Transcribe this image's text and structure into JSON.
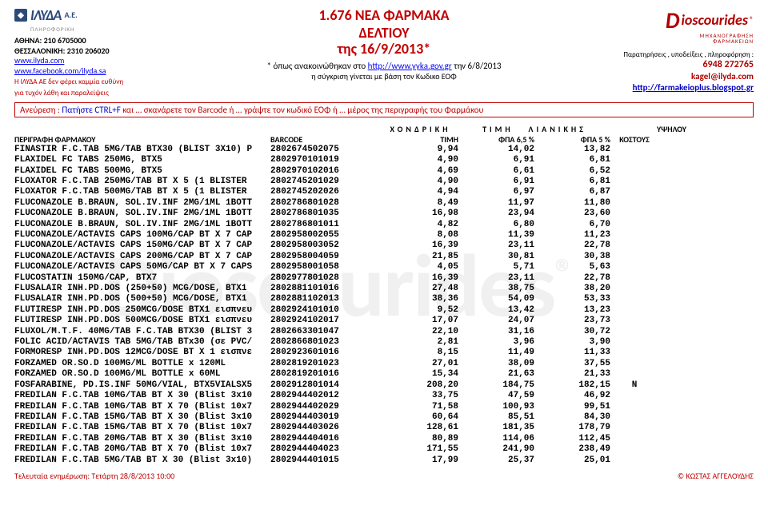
{
  "watermark": "Dioscourides",
  "header": {
    "left": {
      "logo_name": "ΙΛΥΔΑ",
      "logo_suffix": "Α.Ε.",
      "logo_tag": "ΠΛΗΡΟΦΟΡΙΚΗ",
      "athens": "ΑΘΗΝΑ: 210 6705000",
      "thess": "ΘΕΣΣΑΛΟΝΙΚΗ: 2310 206020",
      "site": "www.ilyda.com",
      "fb": "www.facebook.com/ilyda.sa",
      "disclaimer1": "Η ΙΛΥΔΑ ΑΕ δεν φέρει καμμία ευθύνη",
      "disclaimer2": "για τυχόν λάθη και παραλείψεις"
    },
    "center": {
      "line1": "1.676 ΝΕΑ ΦΑΡΜΑΚΑ",
      "line2": "ΔΕΛΤΙΟΥ",
      "line3a": "της ",
      "line3b": "16/9/2013*",
      "note1_pre": "* όπως ανακοινώθηκαν στο ",
      "note1_link": "http://www.yyka.gov.gr",
      "note1_post": "  την  6/8/2013",
      "note2": "η σύγκριση γίνεται με βάση τον Κωδικο ΕΟΦ"
    },
    "right": {
      "brand": "ioscourides",
      "sub1": "ΜΗΧΑΝΟΓΡΑΦΗΣΗ",
      "sub2": "ΦΑΡΜΑΚΕΙΩΝ",
      "note": "Παρατηρήσεις , υποδείξεις , πληροφόρηση :",
      "phone": "6948 272765",
      "mail": "kagel@ilyda.com",
      "site": "http://farmakeioplus.blogspot.gr"
    }
  },
  "searchbox": {
    "label": "Ανεύρεση : ",
    "tip1": "Πατήστε CTRL+F",
    "mid1": "  και … σκανάρετε τον Barcode   ή … γράψτε τον κωδικό ΕΟΦ   ή … μέρος της περιγραφής του Φαρμάκου"
  },
  "columns": {
    "group_x": "ΧΟΝΔΡΙΚΗ",
    "group_l_a": "ΤΙΜΗ",
    "group_l_b": "ΛΙΑΝΙΚΗΣ",
    "group_y": "ΥΨΗΛΟΥ",
    "desc": "ΠΕΡΙΓΡΑΦΗ  ΦΑΡΜΑΚΟΥ",
    "barcode": "BARCODE",
    "p1": "ΤΙΜΗ",
    "p2": "ΦΠΑ 6,5 %",
    "p3": "ΦΠΑ 5 %",
    "flag": "ΚΟΣΤΟΥΣ"
  },
  "rows": [
    {
      "d": "FINASTIR F.C.TAB 5MG/TAB BTX30 (BLIST 3X10) P",
      "b": "2802674502075",
      "p1": "9,94",
      "p2": "14,02",
      "p3": "13,82",
      "f": ""
    },
    {
      "d": "FLAXIDEL FC TABS 250MG, BTX5",
      "b": "2802970101019",
      "p1": "4,90",
      "p2": "6,91",
      "p3": "6,81",
      "f": ""
    },
    {
      "d": "FLAXIDEL FC TABS 500MG, BTX5",
      "b": "2802970102016",
      "p1": "4,69",
      "p2": "6,61",
      "p3": "6,52",
      "f": ""
    },
    {
      "d": "FLOXATOR F.C.TAB 250MG/TAB BT X 5 (1 BLISTER",
      "b": "2802745201029",
      "p1": "4,90",
      "p2": "6,91",
      "p3": "6,81",
      "f": ""
    },
    {
      "d": "FLOXATOR F.C.TAB 500MG/TAB BT X 5 (1 BLISTER",
      "b": "2802745202026",
      "p1": "4,94",
      "p2": "6,97",
      "p3": "6,87",
      "f": ""
    },
    {
      "d": "FLUCONAZOLE B.BRAUN, SOL.IV.INF 2MG/1ML 1BOTT",
      "b": "2802786801028",
      "p1": "8,49",
      "p2": "11,97",
      "p3": "11,80",
      "f": ""
    },
    {
      "d": "FLUCONAZOLE B.BRAUN, SOL.IV.INF 2MG/1ML 1BOTT",
      "b": "2802786801035",
      "p1": "16,98",
      "p2": "23,94",
      "p3": "23,60",
      "f": ""
    },
    {
      "d": "FLUCONAZOLE B.BRAUN, SOL.IV.INF 2MG/1ML 1BOTT",
      "b": "2802786801011",
      "p1": "4,82",
      "p2": "6,80",
      "p3": "6,70",
      "f": ""
    },
    {
      "d": "FLUCONAZOLE/ACTAVIS CAPS 100MG/CAP BT X 7 CAP",
      "b": "2802958002055",
      "p1": "8,08",
      "p2": "11,39",
      "p3": "11,23",
      "f": ""
    },
    {
      "d": "FLUCONAZOLE/ACTAVIS CAPS 150MG/CAP BT X 7 CAP",
      "b": "2802958003052",
      "p1": "16,39",
      "p2": "23,11",
      "p3": "22,78",
      "f": ""
    },
    {
      "d": "FLUCONAZOLE/ACTAVIS CAPS 200MG/CAP BT X 7 CAP",
      "b": "2802958004059",
      "p1": "21,85",
      "p2": "30,81",
      "p3": "30,38",
      "f": ""
    },
    {
      "d": "FLUCONAZOLE/ACTAVIS CAPS 50MG/CAP BT X 7 CAPS",
      "b": "2802958001058",
      "p1": "4,05",
      "p2": "5,71",
      "p3": "5,63",
      "f": ""
    },
    {
      "d": "FLUCOSTATIN 150MG/CAP, BTX7",
      "b": "2802977801028",
      "p1": "16,39",
      "p2": "23,11",
      "p3": "22,78",
      "f": ""
    },
    {
      "d": "FLUSALAIR INH.PD.DOS (250+50) MCG/DOSE, BTX1",
      "b": "2802881101016",
      "p1": "27,48",
      "p2": "38,75",
      "p3": "38,20",
      "f": ""
    },
    {
      "d": "FLUSALAIR INH.PD.DOS (500+50) MCG/DOSE, BTX1",
      "b": "2802881102013",
      "p1": "38,36",
      "p2": "54,09",
      "p3": "53,33",
      "f": ""
    },
    {
      "d": "FLUTIRESP INH.PD.DOS 250MCG/DOSE BTX1 εισπνευ",
      "b": "2802924101010",
      "p1": "9,52",
      "p2": "13,42",
      "p3": "13,23",
      "f": ""
    },
    {
      "d": "FLUTIRESP INH.PD.DOS 500MCG/DOSE BTX1 εισπνευ",
      "b": "2802924102017",
      "p1": "17,07",
      "p2": "24,07",
      "p3": "23,73",
      "f": ""
    },
    {
      "d": "FLUXOL/M.T.F. 40MG/TAB F.C.TAB BTX30 (BLIST 3",
      "b": "2802663301047",
      "p1": "22,10",
      "p2": "31,16",
      "p3": "30,72",
      "f": ""
    },
    {
      "d": "FOLIC ACID/ACTAVIS TAB 5MG/TAB BTx30 (σε PVC/",
      "b": "2802866801023",
      "p1": "2,81",
      "p2": "3,96",
      "p3": "3,90",
      "f": ""
    },
    {
      "d": "FORMORESP INH.PD.DOS 12MCG/DOSE BT X 1 εισπνε",
      "b": "2802923601016",
      "p1": "8,15",
      "p2": "11,49",
      "p3": "11,33",
      "f": ""
    },
    {
      "d": "FORZAMED OR.SO.D 100MG/ML BOTTLE x 120ML",
      "b": "2802819201023",
      "p1": "27,01",
      "p2": "38,09",
      "p3": "37,55",
      "f": ""
    },
    {
      "d": "FORZAMED OR.SO.D 100MG/ML BOTTLE x 60ML",
      "b": "2802819201016",
      "p1": "15,34",
      "p2": "21,63",
      "p3": "21,33",
      "f": ""
    },
    {
      "d": "FOSFARABINE, PD.IS.INF 50MG/VIAL, BTX5VIALSX5",
      "b": "2802912801014",
      "p1": "208,20",
      "p2": "184,75",
      "p3": "182,15",
      "f": "N"
    },
    {
      "d": "FREDILAN F.C.TAB 10MG/TAB BT X 30 (Blist 3x10",
      "b": "2802944402012",
      "p1": "33,75",
      "p2": "47,59",
      "p3": "46,92",
      "f": ""
    },
    {
      "d": "FREDILAN F.C.TAB 10MG/TAB BT X 70 (Blist 10x7",
      "b": "2802944402029",
      "p1": "71,58",
      "p2": "100,93",
      "p3": "99,51",
      "f": ""
    },
    {
      "d": "FREDILAN F.C.TAB 15MG/TAB BT X 30 (Blist 3x10",
      "b": "2802944403019",
      "p1": "60,64",
      "p2": "85,51",
      "p3": "84,30",
      "f": ""
    },
    {
      "d": "FREDILAN F.C.TAB 15MG/TAB BT X 70 (Blist 10x7",
      "b": "2802944403026",
      "p1": "128,61",
      "p2": "181,35",
      "p3": "178,79",
      "f": ""
    },
    {
      "d": "FREDILAN F.C.TAB 20MG/TAB BT X 30 (Blist 3x10",
      "b": "2802944404016",
      "p1": "80,89",
      "p2": "114,06",
      "p3": "112,45",
      "f": ""
    },
    {
      "d": "FREDILAN F.C.TAB 20MG/TAB BT X 70 (Blist 10x7",
      "b": "2802944404023",
      "p1": "171,55",
      "p2": "241,90",
      "p3": "238,49",
      "f": ""
    },
    {
      "d": "FREDILAN F.C.TAB 5MG/TAB BT X 30 (Blist 3x10)",
      "b": "2802944401015",
      "p1": "17,99",
      "p2": "25,37",
      "p3": "25,01",
      "f": ""
    }
  ],
  "footer": {
    "left": "Τελευταία ενημέρωση:  Τετάρτη 28/8/2013  10:00",
    "right": "© ΚΩΣΤΑΣ ΑΓΓΕΛΟΥΔΗΣ"
  }
}
